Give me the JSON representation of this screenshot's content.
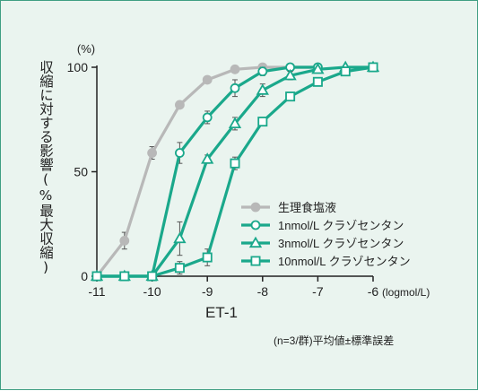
{
  "chart_data": {
    "type": "line",
    "title": "",
    "xlabel": "ET-1",
    "xunit": "(logmol/L)",
    "ylabel": "収縮に対する影響(%最大収縮)",
    "yunit": "(%)",
    "xlim": [
      -11,
      -6
    ],
    "ylim": [
      0,
      100
    ],
    "x_ticks": [
      -11,
      -10,
      -9,
      -8,
      -7,
      -6
    ],
    "x_tick_labels": [
      "-11",
      "-10",
      "-9",
      "-8",
      "-7",
      "-6"
    ],
    "y_ticks": [
      0,
      50,
      100
    ],
    "y_tick_labels": [
      "0",
      "50",
      "100"
    ],
    "grid": false,
    "legend_position": "center-right",
    "footnote": "(n=3/群)平均値±標準誤差",
    "series": [
      {
        "name": "生理食塩液",
        "color": "#b8b8b8",
        "marker": "circle-filled",
        "x": [
          -11,
          -10.5,
          -10,
          -9.5,
          -9,
          -8.5,
          -8,
          -7.5,
          -7
        ],
        "y": [
          0,
          17,
          59,
          82,
          94,
          99,
          100,
          100,
          100
        ],
        "err": [
          0,
          4,
          3,
          1,
          1,
          1,
          0,
          0,
          0
        ]
      },
      {
        "name": "1nmol/L クラゾセンタン",
        "color": "#1aa88b",
        "marker": "circle-open",
        "x": [
          -11,
          -10.5,
          -10,
          -9.5,
          -9,
          -8.5,
          -8,
          -7.5,
          -7
        ],
        "y": [
          0,
          0,
          0,
          59,
          76,
          90,
          98,
          100,
          100
        ],
        "err": [
          0,
          0,
          0,
          5,
          3,
          4,
          2,
          1,
          0
        ]
      },
      {
        "name": "3nmol/L クラゾセンタン",
        "color": "#1aa88b",
        "marker": "triangle-open",
        "x": [
          -11,
          -10.5,
          -10,
          -9.5,
          -9,
          -8.5,
          -8,
          -7.5,
          -7,
          -6.5,
          -6
        ],
        "y": [
          0,
          0,
          0,
          18,
          56,
          73,
          89,
          96,
          99,
          100,
          100
        ],
        "err": [
          0,
          0,
          0,
          8,
          2,
          3,
          3,
          2,
          1,
          0,
          0
        ]
      },
      {
        "name": "10nmol/L クラゾセンタン",
        "color": "#1aa88b",
        "marker": "square-open",
        "x": [
          -11,
          -10.5,
          -10,
          -9.5,
          -9,
          -8.5,
          -8,
          -7.5,
          -7,
          -6.5,
          -6
        ],
        "y": [
          0,
          0,
          0,
          4,
          9,
          54,
          74,
          86,
          93,
          98,
          100
        ],
        "err": [
          0,
          0,
          0,
          3,
          4,
          3,
          2,
          1,
          1,
          1,
          0
        ]
      }
    ]
  }
}
